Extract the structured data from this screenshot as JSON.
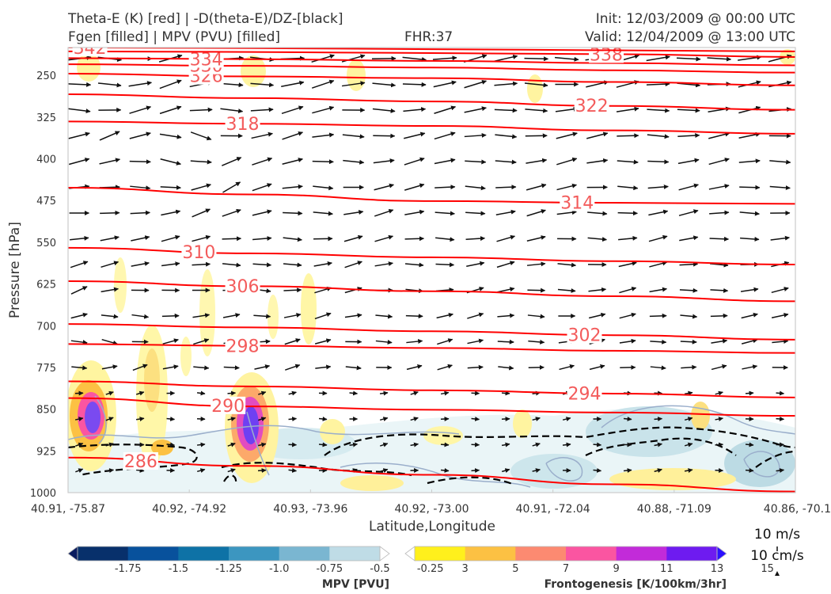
{
  "header": {
    "title_line1": "Theta-E (K) [red] | -D(theta-E)/DZ-[black]",
    "title_line2": "Fgen [filled] | MPV (PVU) [filled]",
    "fhr": "FHR:37",
    "init": "Init: 12/03/2009 @ 00:00 UTC",
    "valid": "Valid: 12/04/2009 @ 13:00 UTC"
  },
  "chart_data": {
    "type": "contour",
    "xlabel": "Latitude,Longitude",
    "ylabel": "Pressure [hPa]",
    "x_tick_labels": [
      "40.91, -75.87",
      "40.92, -74.92",
      "40.93, -73.96",
      "40.92, -73.00",
      "40.91, -72.04",
      "40.88, -71.09",
      "40.86, -70.1"
    ],
    "y_ticks": [
      250,
      325,
      400,
      475,
      550,
      625,
      700,
      775,
      850,
      925,
      1000
    ],
    "ylim": [
      1000,
      200
    ],
    "y_inverted": true,
    "theta_e_color": "#ff0000",
    "theta_e_label_color": "#f35b5b",
    "theta_e_contours": [
      {
        "value": 286,
        "label": "286",
        "y": [
          937,
          952,
          968,
          985,
          998
        ],
        "label_x": 0.1
      },
      {
        "value": 290,
        "label": "290",
        "y": [
          830,
          845,
          851,
          856,
          862
        ],
        "label_x": 0.22
      },
      {
        "value": 294,
        "label": "294",
        "y": [
          800,
          809,
          816,
          822,
          829
        ],
        "label_x": 0.71
      },
      {
        "value": 298,
        "label": "298",
        "y": [
          733,
          736,
          740,
          745,
          749
        ],
        "label_x": 0.24
      },
      {
        "value": 302,
        "label": "302",
        "y": [
          697,
          703,
          710,
          717,
          725
        ],
        "label_x": 0.71
      },
      {
        "value": 306,
        "label": "306",
        "y": [
          620,
          629,
          638,
          647,
          656
        ],
        "label_x": 0.24
      },
      {
        "value": 310,
        "label": "310",
        "y": [
          560,
          570,
          577,
          584,
          590
        ],
        "label_x": 0.18
      },
      {
        "value": 314,
        "label": "314",
        "y": [
          452,
          464,
          476,
          479,
          481
        ],
        "label_x": 0.7
      },
      {
        "value": 318,
        "label": "318",
        "y": [
          333,
          337,
          341,
          349,
          355
        ],
        "label_x": 0.24
      },
      {
        "value": 322,
        "label": "322",
        "y": [
          284,
          291,
          297,
          305,
          312
        ],
        "label_x": 0.72
      },
      {
        "value": 326,
        "label": "326",
        "y": [
          247,
          252,
          255,
          262,
          268
        ],
        "label_x": 0.19
      },
      {
        "value": 330,
        "label": "330",
        "y": [
          230,
          233,
          236,
          241,
          245
        ],
        "label_x": 0.19
      },
      {
        "value": 334,
        "label": "334",
        "y": [
          219,
          221,
          224,
          228,
          232
        ],
        "label_x": 0.19
      },
      {
        "value": 338,
        "label": "338",
        "y": [
          207,
          208,
          210,
          212,
          217
        ],
        "label_x": 0.74
      },
      {
        "value": 342,
        "label": "342",
        "y": [
          200,
          201,
          203,
          205,
          207
        ],
        "label_x": 0.03
      }
    ],
    "mpv_colorbar": {
      "label": "MPV [PVU]",
      "tick_labels": [
        "-1.75",
        "-1.5",
        "-1.25",
        "-1.0",
        "-0.75",
        "-0.5",
        "-0.25"
      ],
      "colors": [
        "#0a1c5f",
        "#08306b",
        "#08519c",
        "#0e72a6",
        "#3c96c0",
        "#7ab6d1",
        "#bfdce6",
        "#ffffff"
      ]
    },
    "fgen_colorbar": {
      "label": "Frontogenesis [K/100km/3hr]",
      "tick_labels": [
        "3",
        "5",
        "7",
        "9",
        "11",
        "13",
        "15"
      ],
      "colors": [
        "#ffffff",
        "#fff01c",
        "#fcc143",
        "#fc8a71",
        "#fa55a1",
        "#c22bd9",
        "#6e1bf0",
        "#2b10ff"
      ]
    },
    "vector_key": {
      "line1": "10 m/s",
      "line2": "10 cm/s"
    }
  }
}
